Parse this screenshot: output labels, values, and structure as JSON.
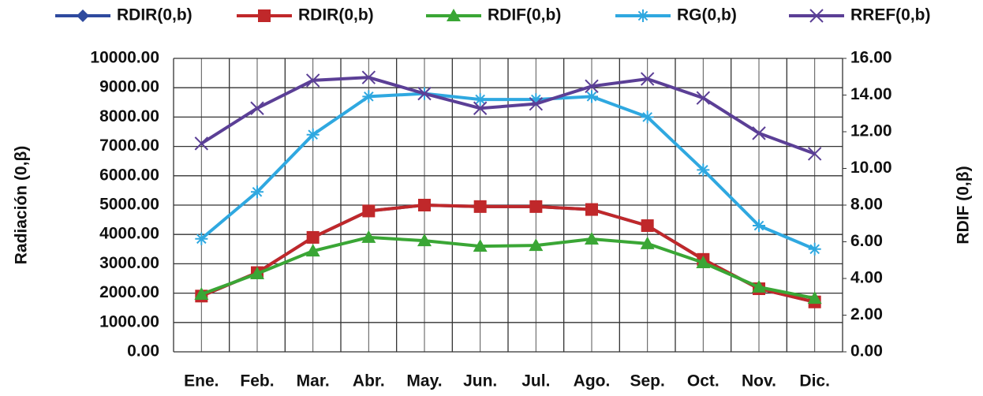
{
  "chart_data": {
    "type": "line",
    "categories": [
      "Ene.",
      "Feb.",
      "Mar.",
      "Abr.",
      "May.",
      "Jun.",
      "Jul.",
      "Ago.",
      "Sep.",
      "Oct.",
      "Nov.",
      "Dic."
    ],
    "y_label": "Radiación (0,β)",
    "y2_label": "RDIF (0,β)",
    "ylim": [
      0,
      10000
    ],
    "yticks": [
      {
        "value": 0,
        "label": "0.00"
      },
      {
        "value": 1000,
        "label": "1000.00"
      },
      {
        "value": 2000,
        "label": "2000.00"
      },
      {
        "value": 3000,
        "label": "3000.00"
      },
      {
        "value": 4000,
        "label": "4000.00"
      },
      {
        "value": 5000,
        "label": "5000.00"
      },
      {
        "value": 6000,
        "label": "6000.00"
      },
      {
        "value": 7000,
        "label": "7000.00"
      },
      {
        "value": 8000,
        "label": "8000.00"
      },
      {
        "value": 9000,
        "label": "9000.00"
      },
      {
        "value": 10000,
        "label": "10000.00"
      }
    ],
    "y2lim": [
      0,
      16
    ],
    "y2ticks": [
      {
        "value": 0,
        "label": "0.00"
      },
      {
        "value": 2,
        "label": "2.00"
      },
      {
        "value": 4,
        "label": "4.00"
      },
      {
        "value": 6,
        "label": "6.00"
      },
      {
        "value": 8,
        "label": "8.00"
      },
      {
        "value": 10,
        "label": "10.00"
      },
      {
        "value": 12,
        "label": "12.00"
      },
      {
        "value": 14,
        "label": "14.00"
      },
      {
        "value": 16,
        "label": "16.00"
      }
    ],
    "grid": true,
    "legend": "top",
    "series": [
      {
        "name": "RDIR(0,b)",
        "color": "#2e4a9e",
        "marker": "diamond",
        "values": [
          1900,
          2700,
          3900,
          4800,
          5000,
          4950,
          4950,
          4850,
          4300,
          3150,
          2150,
          1700
        ]
      },
      {
        "name": "RDIR(0,b)",
        "color": "#c0282a",
        "marker": "square",
        "values": [
          1900,
          2700,
          3900,
          4800,
          5000,
          4950,
          4950,
          4850,
          4300,
          3150,
          2150,
          1700
        ]
      },
      {
        "name": "RDIF(0,b)",
        "color": "#3aa635",
        "marker": "triangle",
        "axis": "y2",
        "values": [
          3.14,
          4.26,
          5.5,
          6.24,
          6.06,
          5.76,
          5.8,
          6.15,
          5.9,
          4.86,
          3.53,
          2.92
        ]
      },
      {
        "name": "RG(0,b)",
        "color": "#2fa8e0",
        "marker": "star",
        "values": [
          3850,
          5450,
          7400,
          8700,
          8800,
          8600,
          8600,
          8700,
          8000,
          6200,
          4300,
          3500
        ]
      },
      {
        "name": "RREF(0,b)",
        "color": "#5b3f96",
        "marker": "x",
        "values": [
          7100,
          8300,
          9250,
          9350,
          8800,
          8300,
          8450,
          9050,
          9300,
          8650,
          7450,
          6750
        ]
      }
    ]
  }
}
